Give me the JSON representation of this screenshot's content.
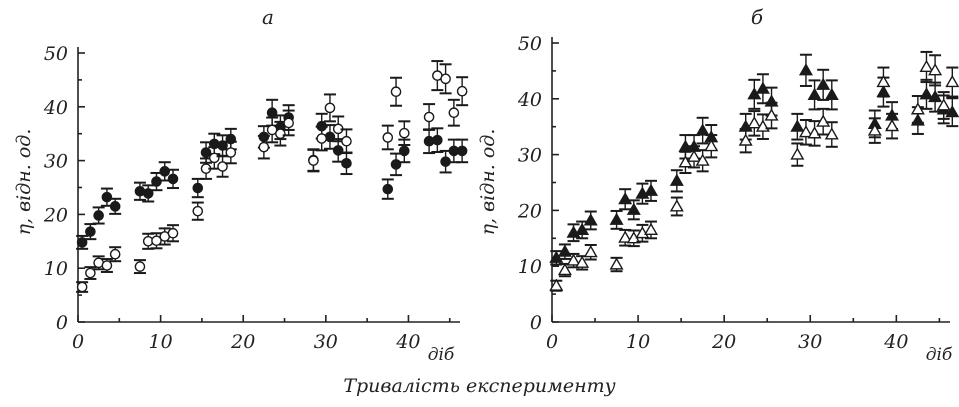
{
  "figure": {
    "bottom_title": "Тривалість експерименту"
  },
  "chart_data": [
    {
      "type": "scatter",
      "panel_label": "а",
      "ylabel": "η, відн. од.",
      "x_unit_label": "діб",
      "xlim": [
        0,
        46
      ],
      "ylim": [
        0,
        50
      ],
      "x_ticks": [
        0,
        10,
        20,
        30,
        40
      ],
      "y_ticks": [
        0,
        10,
        20,
        30,
        40,
        50
      ],
      "grid": false,
      "series": [
        {
          "marker": "filled-circle",
          "color": "#1a1a1a",
          "x": [
            0.5,
            1.5,
            2.5,
            3.5,
            4.5,
            7.5,
            8.5,
            9.5,
            10.5,
            11.5,
            14.5,
            15.5,
            16.5,
            17.5,
            18.5,
            22.5,
            23.5,
            24.5,
            25.5,
            28.5,
            29.5,
            30.5,
            31.5,
            32.5,
            37.5,
            38.5,
            39.5,
            42.5,
            43.5,
            44.5,
            45.5,
            46.5
          ],
          "y": [
            14.8,
            16.8,
            19.8,
            23.2,
            21.5,
            24.3,
            23.9,
            26.1,
            28.0,
            26.6,
            24.9,
            31.5,
            33.1,
            32.8,
            34.0,
            34.4,
            38.9,
            36.2,
            38.0,
            30.1,
            36.4,
            34.4,
            31.9,
            29.5,
            24.7,
            29.3,
            31.8,
            33.6,
            33.8,
            29.8,
            31.8,
            31.8
          ],
          "err": [
            1.2,
            1.4,
            1.5,
            1.6,
            1.4,
            1.6,
            1.5,
            1.6,
            1.7,
            1.7,
            1.7,
            1.9,
            1.9,
            1.9,
            1.9,
            2.0,
            2.4,
            2.2,
            2.3,
            2.0,
            2.3,
            2.2,
            2.1,
            2.0,
            1.8,
            2.0,
            2.1,
            2.2,
            2.2,
            2.0,
            2.1,
            2.1
          ]
        },
        {
          "marker": "open-circle",
          "color": "#1a1a1a",
          "x": [
            0.5,
            1.5,
            2.5,
            3.5,
            4.5,
            7.5,
            8.5,
            9.5,
            10.5,
            11.5,
            14.5,
            15.5,
            16.5,
            17.5,
            18.5,
            22.5,
            23.5,
            24.5,
            25.5,
            28.5,
            29.5,
            30.5,
            31.5,
            32.5,
            37.5,
            38.5,
            39.5,
            42.5,
            43.5,
            44.5,
            45.5,
            46.5
          ],
          "y": [
            6.5,
            9.1,
            11.0,
            10.5,
            12.6,
            10.3,
            15.0,
            15.1,
            15.9,
            16.5,
            20.6,
            28.5,
            30.5,
            28.9,
            31.5,
            32.5,
            35.7,
            35.0,
            37.0,
            30.0,
            34.1,
            39.8,
            35.9,
            33.6,
            34.3,
            42.8,
            35.1,
            38.1,
            45.8,
            45.2,
            38.9,
            42.9
          ],
          "err": [
            0.9,
            1.1,
            1.2,
            1.2,
            1.3,
            1.2,
            1.4,
            1.4,
            1.5,
            1.5,
            1.6,
            1.9,
            2.0,
            1.9,
            2.0,
            2.1,
            2.3,
            2.2,
            2.3,
            2.0,
            2.2,
            2.5,
            2.3,
            2.2,
            2.2,
            2.6,
            2.2,
            2.4,
            2.7,
            2.7,
            2.4,
            2.6
          ]
        }
      ]
    },
    {
      "type": "scatter",
      "panel_label": "б",
      "ylabel": "η, відн. од.",
      "x_unit_label": "діб",
      "xlim": [
        0,
        46
      ],
      "ylim": [
        0,
        50
      ],
      "x_ticks": [
        0,
        10,
        20,
        30,
        40
      ],
      "y_ticks": [
        0,
        10,
        20,
        30,
        40,
        50
      ],
      "grid": false,
      "series": [
        {
          "marker": "filled-triangle",
          "color": "#1a1a1a",
          "x": [
            0.5,
            1.5,
            2.5,
            3.5,
            4.5,
            7.5,
            8.5,
            9.5,
            10.5,
            11.5,
            14.5,
            15.5,
            16.5,
            17.5,
            18.5,
            22.5,
            23.5,
            24.5,
            25.5,
            28.5,
            29.5,
            30.5,
            31.5,
            32.5,
            37.5,
            38.5,
            39.5,
            42.5,
            43.5,
            44.5,
            45.5,
            46.5
          ],
          "y": [
            11.5,
            12.6,
            16.0,
            16.5,
            18.2,
            18.3,
            22.0,
            20.1,
            23.0,
            23.5,
            25.3,
            31.4,
            31.4,
            34.3,
            33.1,
            35.0,
            40.8,
            41.8,
            39.5,
            35.0,
            45.1,
            40.7,
            42.5,
            40.7,
            35.5,
            41.2,
            37.0,
            36.1,
            40.8,
            40.3,
            38.1,
            37.6
          ],
          "err": [
            1.2,
            1.3,
            1.5,
            1.5,
            1.6,
            1.6,
            1.8,
            1.7,
            1.8,
            1.8,
            1.9,
            2.1,
            2.1,
            2.3,
            2.2,
            2.3,
            2.6,
            2.6,
            2.5,
            2.3,
            2.8,
            2.6,
            2.7,
            2.6,
            2.4,
            2.6,
            2.4,
            2.4,
            2.6,
            2.6,
            2.5,
            2.5
          ]
        },
        {
          "marker": "open-triangle",
          "color": "#1a1a1a",
          "x": [
            0.5,
            1.5,
            2.5,
            3.5,
            4.5,
            7.5,
            8.5,
            9.5,
            10.5,
            11.5,
            14.5,
            15.5,
            16.5,
            17.5,
            18.5,
            22.5,
            23.5,
            24.5,
            25.5,
            28.5,
            29.5,
            30.5,
            31.5,
            32.5,
            37.5,
            38.5,
            39.5,
            42.5,
            43.5,
            44.5,
            45.5,
            46.5
          ],
          "y": [
            6.5,
            9.3,
            11.0,
            10.6,
            12.5,
            10.3,
            15.1,
            15.0,
            15.9,
            16.5,
            20.7,
            28.6,
            29.6,
            28.9,
            31.5,
            32.5,
            35.6,
            35.0,
            37.0,
            30.0,
            34.0,
            33.8,
            35.9,
            33.6,
            34.3,
            43.0,
            35.1,
            38.1,
            45.7,
            45.1,
            38.8,
            43.0
          ],
          "err": [
            0.9,
            1.1,
            1.2,
            1.2,
            1.3,
            1.2,
            1.4,
            1.4,
            1.5,
            1.5,
            1.6,
            1.9,
            1.9,
            1.9,
            2.0,
            2.1,
            2.2,
            2.2,
            2.3,
            2.0,
            2.2,
            2.2,
            2.3,
            2.2,
            2.2,
            2.6,
            2.2,
            2.4,
            2.7,
            2.7,
            2.4,
            2.6
          ]
        }
      ]
    }
  ]
}
